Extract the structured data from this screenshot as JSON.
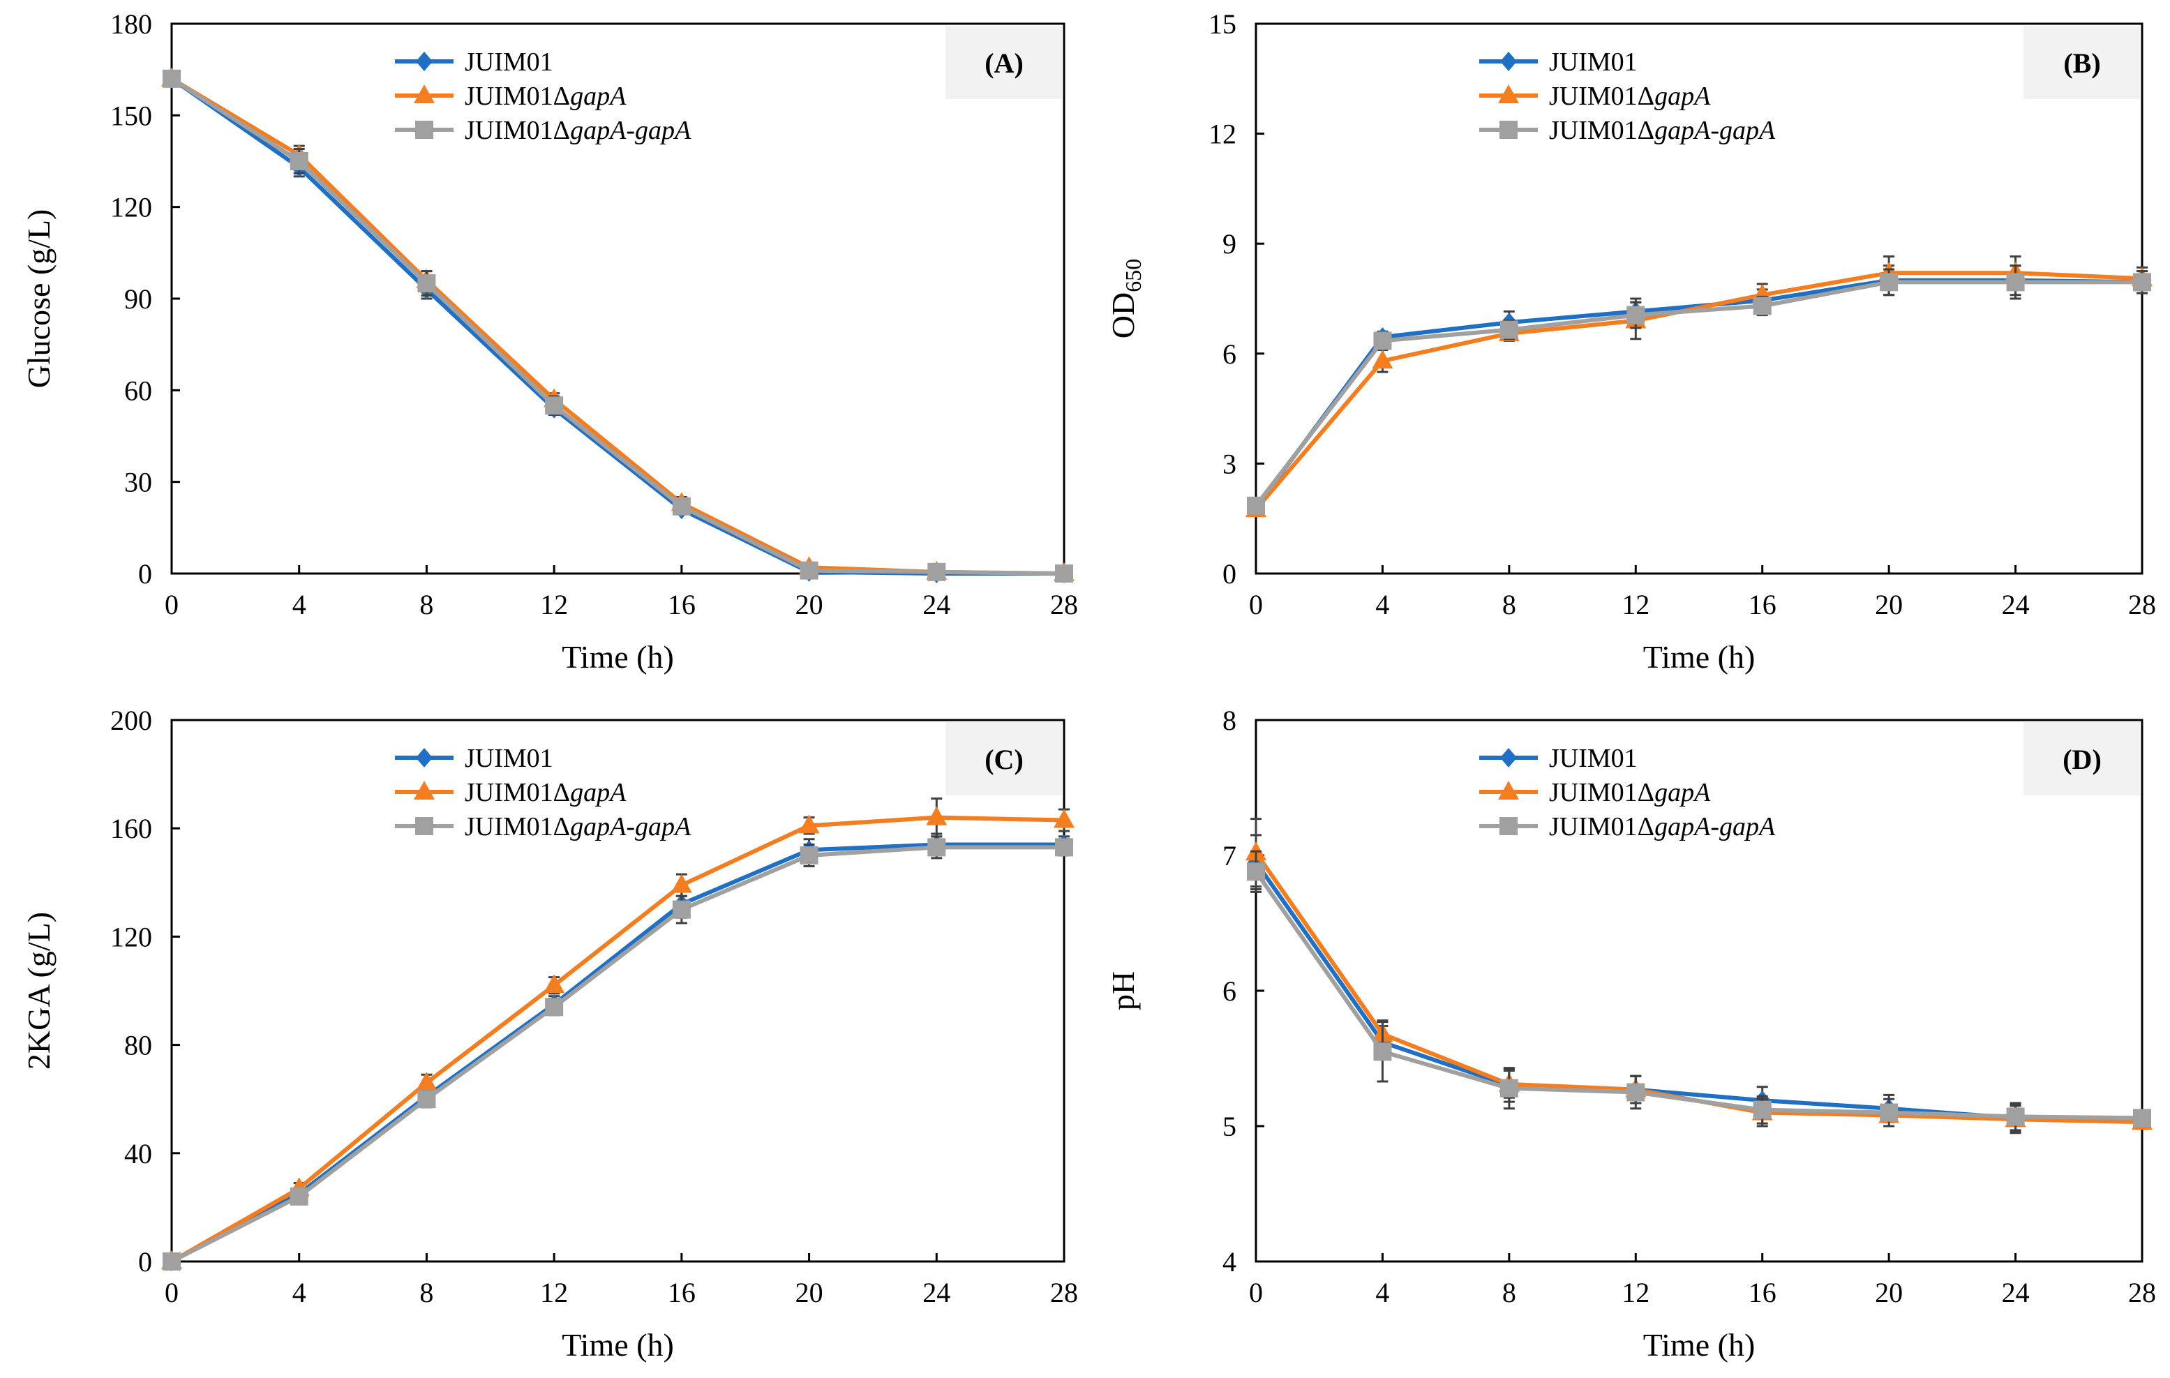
{
  "colors": {
    "JUIM01": "#1f6fc5",
    "JUIM01ΔgapA": "#f47d20",
    "JUIM01ΔgapA-gapA": "#a0a0a0",
    "panel_label_bg": "#f2f2f2",
    "error_bar": "#404040"
  },
  "chart_data": [
    {
      "type": "line",
      "panel": "(A)",
      "xlabel": "Time (h)",
      "ylabel": "Glucose (g/L)",
      "ylabel_sub": "",
      "x": [
        0,
        4,
        8,
        12,
        16,
        20,
        24,
        28
      ],
      "xlim": [
        0,
        28
      ],
      "xticks": [
        0,
        4,
        8,
        12,
        16,
        20,
        24,
        28
      ],
      "ylim": [
        0,
        180
      ],
      "yticks": [
        0,
        30,
        60,
        90,
        120,
        150,
        180
      ],
      "legend": "top-center",
      "grid": false,
      "series": [
        {
          "name": "JUIM01",
          "marker": "diamond",
          "values": [
            162,
            133,
            93,
            54,
            21,
            0.5,
            0,
            0
          ],
          "errors": [
            1,
            3,
            3,
            2,
            1,
            0.5,
            0.3,
            0.3
          ]
        },
        {
          "name": "JUIM01ΔgapA",
          "marker": "triangle",
          "values": [
            162,
            137,
            96,
            57,
            23,
            2,
            0.5,
            0
          ],
          "errors": [
            1,
            3,
            3,
            2,
            2,
            0.5,
            0.3,
            0.3
          ]
        },
        {
          "name": "JUIM01ΔgapA-gapA",
          "marker": "square",
          "values": [
            162,
            135,
            95,
            55,
            22,
            1,
            0.5,
            0
          ],
          "errors": [
            1,
            4,
            4,
            3,
            2,
            0.5,
            0.3,
            0.3
          ]
        }
      ]
    },
    {
      "type": "line",
      "panel": "(B)",
      "xlabel": "Time (h)",
      "ylabel": "OD",
      "ylabel_sub": "650",
      "x": [
        0,
        4,
        8,
        12,
        16,
        20,
        24,
        28
      ],
      "xlim": [
        0,
        28
      ],
      "xticks": [
        0,
        4,
        8,
        12,
        16,
        20,
        24,
        28
      ],
      "ylim": [
        0,
        15
      ],
      "yticks": [
        0,
        3,
        6,
        9,
        12,
        15
      ],
      "legend": "top-center",
      "grid": false,
      "series": [
        {
          "name": "JUIM01",
          "marker": "diamond",
          "values": [
            1.8,
            6.45,
            6.85,
            7.15,
            7.45,
            8.0,
            8.0,
            7.95
          ],
          "errors": [
            0.1,
            0.15,
            0.3,
            0.35,
            0.3,
            0.4,
            0.4,
            0.3
          ]
        },
        {
          "name": "JUIM01ΔgapA",
          "marker": "triangle",
          "values": [
            1.75,
            5.8,
            6.55,
            6.9,
            7.6,
            8.2,
            8.2,
            8.05
          ],
          "errors": [
            0.1,
            0.3,
            0.2,
            0.5,
            0.3,
            0.45,
            0.45,
            0.3
          ]
        },
        {
          "name": "JUIM01ΔgapA-gapA",
          "marker": "square",
          "values": [
            1.85,
            6.35,
            6.65,
            7.05,
            7.3,
            7.95,
            7.95,
            7.95
          ],
          "errors": [
            0.1,
            0.2,
            0.25,
            0.35,
            0.25,
            0.35,
            0.45,
            0.3
          ]
        }
      ]
    },
    {
      "type": "line",
      "panel": "(C)",
      "xlabel": "Time (h)",
      "ylabel": "2KGA (g/L)",
      "ylabel_sub": "",
      "x": [
        0,
        4,
        8,
        12,
        16,
        20,
        24,
        28
      ],
      "xlim": [
        0,
        28
      ],
      "xticks": [
        0,
        4,
        8,
        12,
        16,
        20,
        24,
        28
      ],
      "ylim": [
        0,
        200
      ],
      "yticks": [
        0,
        40,
        80,
        120,
        160,
        200
      ],
      "legend": "top-center",
      "grid": false,
      "series": [
        {
          "name": "JUIM01",
          "marker": "diamond",
          "values": [
            0,
            25,
            61,
            95,
            132,
            152,
            154,
            154
          ],
          "errors": [
            0.5,
            2,
            3,
            3,
            5,
            4,
            4,
            3
          ]
        },
        {
          "name": "JUIM01ΔgapA",
          "marker": "triangle",
          "values": [
            0,
            27,
            66,
            102,
            139,
            161,
            164,
            163
          ],
          "errors": [
            0.5,
            2,
            3,
            3,
            4,
            3,
            7,
            4
          ]
        },
        {
          "name": "JUIM01ΔgapA-gapA",
          "marker": "square",
          "values": [
            0,
            24,
            60,
            94,
            130,
            150,
            153,
            153
          ],
          "errors": [
            0.5,
            2,
            3,
            3,
            5,
            4,
            4,
            3
          ]
        }
      ]
    },
    {
      "type": "line",
      "panel": "(D)",
      "xlabel": "Time (h)",
      "ylabel": "pH",
      "ylabel_sub": "",
      "x": [
        0,
        4,
        8,
        12,
        16,
        20,
        24,
        28
      ],
      "xlim": [
        0,
        28
      ],
      "xticks": [
        0,
        4,
        8,
        12,
        16,
        20,
        24,
        28
      ],
      "ylim": [
        4,
        8
      ],
      "yticks": [
        4,
        5,
        6,
        7,
        8
      ],
      "legend": "top-center",
      "grid": false,
      "series": [
        {
          "name": "JUIM01",
          "marker": "diamond",
          "values": [
            6.95,
            5.62,
            5.3,
            5.27,
            5.19,
            5.13,
            5.06,
            5.05
          ],
          "errors": [
            0.2,
            0.12,
            0.12,
            0.1,
            0.1,
            0.1,
            0.1,
            0.05
          ]
        },
        {
          "name": "JUIM01ΔgapA",
          "marker": "triangle",
          "values": [
            7.02,
            5.68,
            5.31,
            5.27,
            5.1,
            5.08,
            5.05,
            5.03
          ],
          "errors": [
            0.25,
            0.1,
            0.1,
            0.1,
            0.1,
            0.05,
            0.1,
            0.05
          ]
        },
        {
          "name": "JUIM01ΔgapA-gapA",
          "marker": "square",
          "values": [
            6.88,
            5.55,
            5.28,
            5.25,
            5.12,
            5.1,
            5.07,
            5.06
          ],
          "errors": [
            0.15,
            0.22,
            0.15,
            0.12,
            0.1,
            0.1,
            0.1,
            0.05
          ]
        }
      ]
    }
  ]
}
